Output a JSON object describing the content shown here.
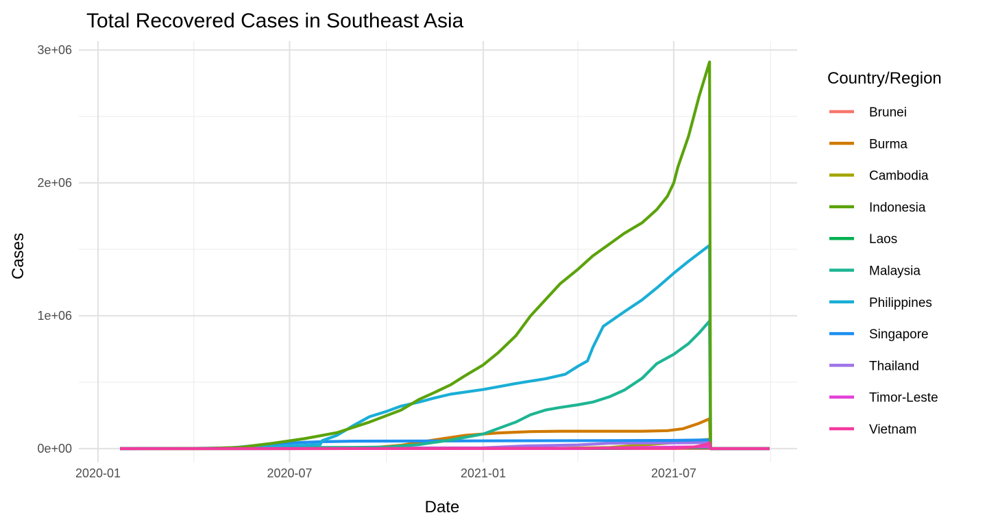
{
  "chart_data": {
    "type": "line",
    "title": "Total Recovered Cases in Southeast Asia",
    "xlabel": "Date",
    "ylabel": "Cases",
    "x_scale": "date",
    "xlim": [
      "2020-01-01",
      "2021-10-01"
    ],
    "ylim": [
      0,
      3000000
    ],
    "x_ticks": [
      {
        "date": "2020-01-01",
        "label": "2020-01"
      },
      {
        "date": "2020-07-01",
        "label": "2020-07"
      },
      {
        "date": "2021-01-01",
        "label": "2021-01"
      },
      {
        "date": "2021-07-01",
        "label": "2021-07"
      }
    ],
    "x_minor_ticks": [
      "2020-04-01",
      "2020-10-01",
      "2021-04-01",
      "2021-10-01"
    ],
    "y_ticks": [
      {
        "value": 0,
        "label": "0e+00"
      },
      {
        "value": 1000000,
        "label": "1e+06"
      },
      {
        "value": 2000000,
        "label": "2e+06"
      },
      {
        "value": 3000000,
        "label": "3e+06"
      }
    ],
    "y_minor_ticks": [
      500000,
      1500000,
      2500000
    ],
    "grid": true,
    "legend": {
      "title": "Country/Region",
      "placement": "right"
    },
    "series": [
      {
        "name": "Brunei",
        "color": "#F8766D",
        "points": [
          [
            "2020-01-22",
            0
          ],
          [
            "2021-08-04",
            300
          ],
          [
            "2021-08-05",
            0
          ],
          [
            "2021-09-30",
            0
          ]
        ]
      },
      {
        "name": "Cambodia",
        "color": "#A3A500",
        "points": [
          [
            "2020-01-22",
            0
          ],
          [
            "2021-01-01",
            400
          ],
          [
            "2021-03-01",
            900
          ],
          [
            "2021-05-01",
            8000
          ],
          [
            "2021-07-01",
            45000
          ],
          [
            "2021-08-04",
            70000
          ],
          [
            "2021-08-05",
            0
          ],
          [
            "2021-09-30",
            0
          ]
        ]
      },
      {
        "name": "Laos",
        "color": "#00B050",
        "points": [
          [
            "2020-01-22",
            0
          ],
          [
            "2021-05-01",
            500
          ],
          [
            "2021-08-04",
            8000
          ],
          [
            "2021-08-05",
            0
          ],
          [
            "2021-09-30",
            0
          ]
        ]
      },
      {
        "name": "Thailand",
        "color": "#9E74E8",
        "points": [
          [
            "2020-01-22",
            0
          ],
          [
            "2020-04-15",
            2000
          ],
          [
            "2020-06-01",
            3000
          ],
          [
            "2021-01-01",
            6000
          ],
          [
            "2021-02-10",
            20000
          ],
          [
            "2021-04-01",
            28000
          ],
          [
            "2021-05-01",
            40000
          ],
          [
            "2021-08-04",
            45000
          ],
          [
            "2021-08-05",
            0
          ],
          [
            "2021-09-30",
            0
          ]
        ]
      },
      {
        "name": "Timor-Leste",
        "color": "#E342D8",
        "points": [
          [
            "2020-01-22",
            0
          ],
          [
            "2021-04-01",
            600
          ],
          [
            "2021-06-01",
            8000
          ],
          [
            "2021-08-04",
            14000
          ],
          [
            "2021-08-05",
            0
          ],
          [
            "2021-09-30",
            0
          ]
        ]
      },
      {
        "name": "Burma",
        "color": "#D07A00",
        "points": [
          [
            "2020-01-22",
            0
          ],
          [
            "2020-08-15",
            300
          ],
          [
            "2020-09-15",
            5000
          ],
          [
            "2020-10-15",
            25000
          ],
          [
            "2020-11-15",
            65000
          ],
          [
            "2020-12-15",
            100000
          ],
          [
            "2021-01-15",
            118000
          ],
          [
            "2021-02-15",
            128000
          ],
          [
            "2021-03-15",
            131000
          ],
          [
            "2021-06-01",
            131000
          ],
          [
            "2021-06-25",
            135000
          ],
          [
            "2021-07-10",
            150000
          ],
          [
            "2021-07-25",
            190000
          ],
          [
            "2021-08-04",
            225000
          ],
          [
            "2021-08-05",
            0
          ],
          [
            "2021-09-30",
            0
          ]
        ]
      },
      {
        "name": "Singapore",
        "color": "#1E90F0",
        "points": [
          [
            "2020-01-22",
            0
          ],
          [
            "2020-04-15",
            800
          ],
          [
            "2020-05-01",
            3000
          ],
          [
            "2020-05-15",
            12000
          ],
          [
            "2020-06-01",
            25000
          ],
          [
            "2020-06-15",
            35000
          ],
          [
            "2020-07-01",
            42000
          ],
          [
            "2020-07-15",
            47000
          ],
          [
            "2020-08-01",
            52000
          ],
          [
            "2020-09-01",
            56000
          ],
          [
            "2021-01-01",
            58500
          ],
          [
            "2021-05-01",
            60500
          ],
          [
            "2021-07-01",
            62000
          ],
          [
            "2021-08-04",
            66000
          ],
          [
            "2021-08-05",
            0
          ],
          [
            "2021-09-30",
            0
          ]
        ]
      },
      {
        "name": "Malaysia",
        "color": "#1EB593",
        "points": [
          [
            "2020-01-22",
            0
          ],
          [
            "2020-04-01",
            2000
          ],
          [
            "2020-06-01",
            8000
          ],
          [
            "2020-09-01",
            9500
          ],
          [
            "2020-10-01",
            12000
          ],
          [
            "2020-11-01",
            30000
          ],
          [
            "2020-12-01",
            65000
          ],
          [
            "2021-01-01",
            110000
          ],
          [
            "2021-02-01",
            200000
          ],
          [
            "2021-02-15",
            255000
          ],
          [
            "2021-03-01",
            290000
          ],
          [
            "2021-03-15",
            310000
          ],
          [
            "2021-04-01",
            330000
          ],
          [
            "2021-04-15",
            350000
          ],
          [
            "2021-05-01",
            390000
          ],
          [
            "2021-05-15",
            440000
          ],
          [
            "2021-06-01",
            530000
          ],
          [
            "2021-06-15",
            640000
          ],
          [
            "2021-07-01",
            710000
          ],
          [
            "2021-07-15",
            790000
          ],
          [
            "2021-07-25",
            870000
          ],
          [
            "2021-08-04",
            960000
          ],
          [
            "2021-08-05",
            0
          ],
          [
            "2021-09-30",
            0
          ]
        ]
      },
      {
        "name": "Philippines",
        "color": "#1AAED6",
        "points": [
          [
            "2020-01-22",
            0
          ],
          [
            "2020-04-15",
            1500
          ],
          [
            "2020-05-15",
            8000
          ],
          [
            "2020-06-15",
            15000
          ],
          [
            "2020-07-01",
            20000
          ],
          [
            "2020-07-30",
            30000
          ],
          [
            "2020-08-01",
            60000
          ],
          [
            "2020-08-15",
            100000
          ],
          [
            "2020-09-01",
            180000
          ],
          [
            "2020-09-15",
            240000
          ],
          [
            "2020-10-01",
            280000
          ],
          [
            "2020-10-15",
            320000
          ],
          [
            "2020-11-01",
            350000
          ],
          [
            "2020-11-15",
            380000
          ],
          [
            "2020-12-01",
            410000
          ],
          [
            "2021-01-01",
            445000
          ],
          [
            "2021-02-01",
            490000
          ],
          [
            "2021-03-01",
            525000
          ],
          [
            "2021-03-20",
            560000
          ],
          [
            "2021-04-01",
            620000
          ],
          [
            "2021-04-10",
            660000
          ],
          [
            "2021-04-15",
            760000
          ],
          [
            "2021-04-25",
            920000
          ],
          [
            "2021-05-15",
            1030000
          ],
          [
            "2021-06-01",
            1120000
          ],
          [
            "2021-06-15",
            1210000
          ],
          [
            "2021-07-01",
            1320000
          ],
          [
            "2021-07-15",
            1410000
          ],
          [
            "2021-08-04",
            1530000
          ],
          [
            "2021-08-05",
            0
          ],
          [
            "2021-09-30",
            0
          ]
        ]
      },
      {
        "name": "Indonesia",
        "color": "#5BA30C",
        "points": [
          [
            "2020-01-22",
            0
          ],
          [
            "2020-04-15",
            1500
          ],
          [
            "2020-05-15",
            10000
          ],
          [
            "2020-06-15",
            40000
          ],
          [
            "2020-07-15",
            75000
          ],
          [
            "2020-08-15",
            120000
          ],
          [
            "2020-09-15",
            200000
          ],
          [
            "2020-10-15",
            290000
          ],
          [
            "2020-11-01",
            370000
          ],
          [
            "2020-11-15",
            420000
          ],
          [
            "2020-12-01",
            480000
          ],
          [
            "2020-12-15",
            550000
          ],
          [
            "2021-01-01",
            630000
          ],
          [
            "2021-01-15",
            720000
          ],
          [
            "2021-02-01",
            850000
          ],
          [
            "2021-02-15",
            1000000
          ],
          [
            "2021-03-01",
            1120000
          ],
          [
            "2021-03-15",
            1240000
          ],
          [
            "2021-04-01",
            1350000
          ],
          [
            "2021-04-15",
            1450000
          ],
          [
            "2021-05-01",
            1540000
          ],
          [
            "2021-05-15",
            1620000
          ],
          [
            "2021-06-01",
            1700000
          ],
          [
            "2021-06-15",
            1800000
          ],
          [
            "2021-06-25",
            1900000
          ],
          [
            "2021-07-01",
            2000000
          ],
          [
            "2021-07-05",
            2120000
          ],
          [
            "2021-07-15",
            2350000
          ],
          [
            "2021-07-25",
            2650000
          ],
          [
            "2021-08-04",
            2910000
          ],
          [
            "2021-08-05",
            0
          ],
          [
            "2021-09-30",
            0
          ]
        ]
      },
      {
        "name": "Vietnam",
        "color": "#F23A9E",
        "points": [
          [
            "2020-01-22",
            0
          ],
          [
            "2021-07-01",
            2500
          ],
          [
            "2021-07-20",
            12000
          ],
          [
            "2021-08-01",
            30000
          ],
          [
            "2021-08-04",
            45000
          ],
          [
            "2021-08-05",
            0
          ],
          [
            "2021-09-30",
            0
          ]
        ]
      }
    ]
  }
}
